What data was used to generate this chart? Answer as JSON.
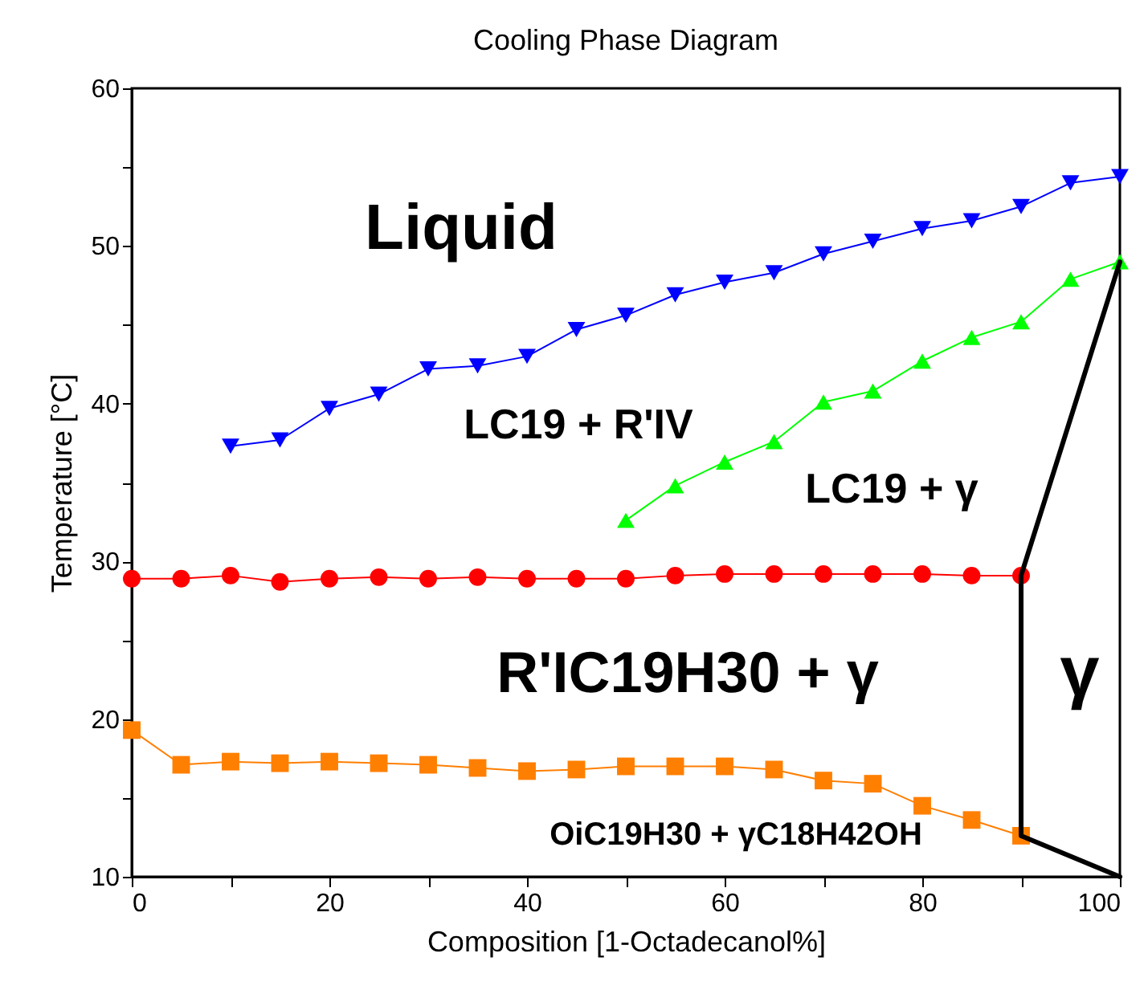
{
  "chart_data": {
    "type": "line",
    "title": "Cooling Phase Diagram",
    "xlabel": "Composition [1-Octadecanol%]",
    "ylabel": "Temperature [°C]",
    "xlim": [
      0,
      100
    ],
    "xticks": [
      0,
      {
        "value": 10,
        "label": null
      },
      20,
      {
        "value": 30,
        "label": null
      },
      40,
      {
        "value": 50,
        "label": null
      },
      60,
      {
        "value": 70,
        "label": null
      },
      80,
      {
        "value": 90,
        "label": null
      },
      100
    ],
    "ylim": [
      10,
      60
    ],
    "yticks": [
      10,
      {
        "value": 15,
        "label": null
      },
      20,
      {
        "value": 25,
        "label": null
      },
      30,
      {
        "value": 35,
        "label": null
      },
      40,
      {
        "value": 45,
        "label": null
      },
      50,
      {
        "value": 55,
        "label": null
      },
      60
    ],
    "grid": false,
    "series": [
      {
        "color": "#0000ff",
        "marker": "triangle-down",
        "x": [
          10,
          15,
          20,
          25,
          30,
          35,
          40,
          45,
          50,
          55,
          60,
          65,
          70,
          75,
          80,
          85,
          90,
          95,
          100
        ],
        "values": [
          37.3,
          37.7,
          39.7,
          40.6,
          42.2,
          42.4,
          43.0,
          44.7,
          45.6,
          46.9,
          47.7,
          48.3,
          49.5,
          50.3,
          51.1,
          51.6,
          52.5,
          54.0,
          54.4
        ]
      },
      {
        "color": "#00ff00",
        "marker": "triangle-up",
        "x": [
          50,
          55,
          60,
          65,
          70,
          75,
          80,
          85,
          90,
          95,
          100
        ],
        "values": [
          32.6,
          34.8,
          36.3,
          37.6,
          40.1,
          40.8,
          42.7,
          44.2,
          45.2,
          47.9,
          49.0
        ]
      },
      {
        "color": "#ff0000",
        "marker": "circle",
        "x": [
          0,
          5,
          10,
          15,
          20,
          25,
          30,
          35,
          40,
          45,
          50,
          55,
          60,
          65,
          70,
          75,
          80,
          85,
          90
        ],
        "values": [
          28.9,
          28.9,
          29.1,
          28.7,
          28.9,
          29.0,
          28.9,
          29.0,
          28.9,
          28.9,
          28.9,
          29.1,
          29.2,
          29.2,
          29.2,
          29.2,
          29.2,
          29.1,
          29.1
        ]
      },
      {
        "color": "#ff7f00",
        "marker": "square",
        "x": [
          0,
          5,
          10,
          15,
          20,
          25,
          30,
          35,
          40,
          45,
          50,
          55,
          60,
          65,
          70,
          75,
          80,
          85,
          90
        ],
        "values": [
          19.3,
          17.1,
          17.3,
          17.2,
          17.3,
          17.2,
          17.1,
          16.9,
          16.7,
          16.8,
          17.0,
          17.0,
          17.0,
          16.8,
          16.1,
          15.9,
          14.5,
          13.6,
          12.6
        ]
      },
      {
        "color": "#000000",
        "marker": "none",
        "x": [
          100,
          90,
          90,
          100
        ],
        "values": [
          49.0,
          29.1,
          12.6,
          10.0
        ]
      }
    ],
    "annotations": [
      "Liquid",
      "LC19 + R'IV",
      "LC19 + γ",
      "R'IC19H30 + γ",
      "γ",
      "OiC19H30 + γC18H42OH"
    ]
  }
}
